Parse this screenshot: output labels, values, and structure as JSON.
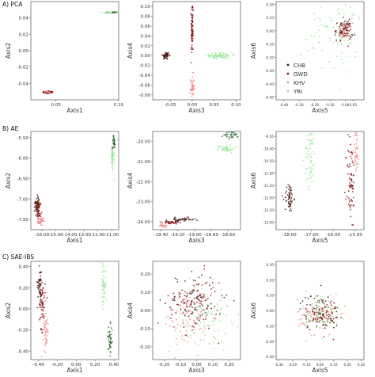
{
  "colors": {
    "CHB": "#4a1a14",
    "GWD": "#8b1a1a",
    "KHV": "#f28f8f",
    "YRI": "#9be59b",
    "dark_green": "#2e5e2e"
  },
  "legend": [
    "CHB",
    "GWD",
    "KHV",
    "YRI"
  ],
  "row_labels": [
    "A) PCA",
    "B) AE",
    "C) SAE-IBS"
  ],
  "chart_data": [
    {
      "id": "pca-12",
      "type": "scatter",
      "row": 0,
      "col": 0,
      "xlabel": "Axis1",
      "ylabel": "Axis2",
      "xlim": [
        0.03,
        0.1
      ],
      "ylim": [
        -0.06,
        0.06
      ],
      "xticks": [
        {
          "v": 0.05,
          "label": "0.05"
        },
        {
          "v": 0.1,
          "label": "0.10"
        }
      ],
      "yticks": [
        {
          "v": 0.04,
          "label": "0.04"
        },
        {
          "v": 0.02,
          "label": "0.02"
        },
        {
          "v": 0.0,
          "label": "0.00"
        },
        {
          "v": -0.02,
          "label": "-0.02"
        },
        {
          "v": -0.04,
          "label": "-0.04"
        }
      ],
      "series": [
        {
          "name": "CHB",
          "values": [
            [
              0.04,
              -0.051
            ],
            [
              0.046,
              -0.05
            ]
          ]
        },
        {
          "name": "GWD",
          "values": [
            [
              0.043,
              -0.052
            ],
            [
              0.047,
              -0.051
            ]
          ]
        },
        {
          "name": "KHV",
          "values": [
            [
              0.041,
              -0.05
            ]
          ]
        },
        {
          "name": "YRI",
          "values": [
            [
              0.09,
              0.046
            ],
            [
              0.098,
              0.047
            ]
          ]
        }
      ]
    },
    {
      "id": "pca-34",
      "type": "scatter",
      "row": 0,
      "col": 1,
      "xlabel": "Axis3",
      "ylabel": "Axis4",
      "xlim": [
        -0.09,
        0.11
      ],
      "ylim": [
        -0.09,
        0.11
      ],
      "xticks": [
        {
          "v": -0.05,
          "label": "-0.05"
        },
        {
          "v": 0.0,
          "label": "0.00"
        },
        {
          "v": 0.05,
          "label": "0.05"
        },
        {
          "v": 0.1,
          "label": "0.10"
        }
      ],
      "yticks": [
        {
          "v": 0.1,
          "label": "0.10"
        },
        {
          "v": 0.08,
          "label": "0.08"
        },
        {
          "v": 0.06,
          "label": "0.06"
        },
        {
          "v": 0.04,
          "label": "0.04"
        },
        {
          "v": 0.02,
          "label": "0.02"
        },
        {
          "v": 0.0,
          "label": "0.00"
        },
        {
          "v": -0.02,
          "label": "-0.02"
        },
        {
          "v": -0.04,
          "label": "-0.04"
        },
        {
          "v": -0.06,
          "label": "-0.06"
        },
        {
          "v": -0.08,
          "label": "-0.08"
        }
      ],
      "series": [
        {
          "name": "CHB",
          "values": [
            [
              -0.06,
              0.0
            ],
            [
              -0.055,
              0.002
            ]
          ]
        },
        {
          "name": "GWD",
          "values": [
            [
              0.0,
              0.07
            ],
            [
              0.0,
              0.03
            ]
          ]
        },
        {
          "name": "KHV",
          "values": [
            [
              0.0,
              -0.07
            ]
          ]
        },
        {
          "name": "YRI",
          "values": [
            [
              0.06,
              -0.001
            ]
          ]
        }
      ]
    },
    {
      "id": "pca-56",
      "type": "scatter",
      "row": 0,
      "col": 2,
      "xlabel": "Axis5",
      "ylabel": "Axis6",
      "xlim": [
        -0.45,
        0.12
      ],
      "ylim": [
        -0.52,
        0.22
      ],
      "xticks": [
        {
          "v": -0.4,
          "label": "-0.40"
        },
        {
          "v": -0.3,
          "label": "-0.30"
        },
        {
          "v": -0.2,
          "label": "-0.20"
        },
        {
          "v": -0.1,
          "label": "-0.10"
        },
        {
          "v": 0.0,
          "label": "0.00"
        },
        {
          "v": 0.05,
          "label": "0.05"
        }
      ],
      "yticks": [
        {
          "v": 0.2,
          "label": "0.20"
        },
        {
          "v": 0.1,
          "label": "0.10"
        },
        {
          "v": 0.0,
          "label": "0.00"
        },
        {
          "v": -0.1,
          "label": "-0.10"
        },
        {
          "v": -0.2,
          "label": "-0.20"
        },
        {
          "v": -0.3,
          "label": "-0.30"
        },
        {
          "v": -0.4,
          "label": "-0.40"
        },
        {
          "v": -0.5,
          "label": "-0.50"
        }
      ],
      "series": [
        {
          "name": "CHB",
          "values": [
            [
              0.0,
              0.02
            ]
          ]
        },
        {
          "name": "GWD",
          "values": [
            [
              -0.01,
              0.01
            ]
          ]
        },
        {
          "name": "KHV",
          "values": [
            [
              0.0,
              0.01
            ]
          ]
        },
        {
          "name": "YRI",
          "values": [
            [
              -0.03,
              -0.05
            ]
          ]
        }
      ]
    },
    {
      "id": "ae-12",
      "type": "scatter",
      "row": 1,
      "col": 0,
      "xlabel": "Axis1",
      "ylabel": "Axis2",
      "xlim": [
        -16.8,
        -10.5
      ],
      "ylim": [
        -7.75,
        -5.35
      ],
      "xticks": [
        {
          "v": -16.0,
          "label": "-16.00"
        },
        {
          "v": -15.0,
          "label": "-15.00"
        },
        {
          "v": -14.0,
          "label": "-14.00"
        },
        {
          "v": -13.0,
          "label": "-13.00"
        },
        {
          "v": -12.0,
          "label": "-12.00"
        },
        {
          "v": -11.0,
          "label": "-11.00"
        }
      ],
      "yticks": [
        {
          "v": -5.5,
          "label": "-5.50"
        },
        {
          "v": -6.0,
          "label": "-6.00"
        },
        {
          "v": -6.5,
          "label": "-6.50"
        },
        {
          "v": -7.0,
          "label": "-7.00"
        },
        {
          "v": -7.5,
          "label": "-7.50"
        }
      ],
      "series": [
        {
          "name": "CHB",
          "values": [
            [
              -16.5,
              -7.1
            ],
            [
              -16.2,
              -7.4
            ]
          ]
        },
        {
          "name": "GWD",
          "values": [
            [
              -16.3,
              -7.2
            ]
          ]
        },
        {
          "name": "KHV",
          "values": [
            [
              -16.1,
              -7.5
            ]
          ]
        },
        {
          "name": "YRI",
          "values": [
            [
              -10.9,
              -5.6
            ],
            [
              -11.0,
              -6.1
            ]
          ]
        }
      ]
    },
    {
      "id": "ae-34",
      "type": "scatter",
      "row": 1,
      "col": 1,
      "xlabel": "Axis3",
      "ylabel": "Axis4",
      "xlim": [
        -19.5,
        -18.45
      ],
      "ylim": [
        -24.4,
        -19.5
      ],
      "xticks": [
        {
          "v": -19.4,
          "label": "-19.40"
        },
        {
          "v": -19.2,
          "label": "-19.20"
        },
        {
          "v": -19.0,
          "label": "-19.00"
        },
        {
          "v": -18.8,
          "label": "-18.80"
        },
        {
          "v": -18.6,
          "label": "-18.60"
        }
      ],
      "yticks": [
        {
          "v": -20.0,
          "label": "-20.00"
        },
        {
          "v": -21.0,
          "label": "-21.00"
        },
        {
          "v": -22.0,
          "label": "-22.00"
        },
        {
          "v": -23.0,
          "label": "-23.00"
        },
        {
          "v": -24.0,
          "label": "-24.00"
        }
      ],
      "series": [
        {
          "name": "CHB",
          "values": [
            [
              -19.2,
              -23.95
            ]
          ]
        },
        {
          "name": "GWD",
          "values": [
            [
              -19.3,
              -24.05
            ]
          ]
        },
        {
          "name": "KHV",
          "values": [
            [
              -19.4,
              -24.15
            ]
          ]
        },
        {
          "name": "YRI",
          "values": [
            [
              -18.55,
              -19.7
            ],
            [
              -18.6,
              -20.4
            ]
          ]
        }
      ]
    },
    {
      "id": "ae-56",
      "type": "scatter",
      "row": 1,
      "col": 2,
      "xlabel": "Axis5",
      "ylabel": "Axis6",
      "xlim": [
        -18.6,
        -14.6
      ],
      "ylim": [
        -13.3,
        -9.3
      ],
      "xticks": [
        {
          "v": -18.0,
          "label": "-18.00"
        },
        {
          "v": -17.0,
          "label": "-17.00"
        },
        {
          "v": -16.0,
          "label": "-16.00"
        },
        {
          "v": -15.0,
          "label": "-15.00"
        }
      ],
      "yticks": [
        {
          "v": -9.5,
          "label": "-9.50"
        },
        {
          "v": -10.0,
          "label": "-10.00"
        },
        {
          "v": -10.5,
          "label": "-10.50"
        },
        {
          "v": -11.0,
          "label": "-11.00"
        },
        {
          "v": -11.5,
          "label": "-11.50"
        },
        {
          "v": -12.0,
          "label": "-12.00"
        },
        {
          "v": -12.5,
          "label": "-12.50"
        },
        {
          "v": -13.0,
          "label": "-13.00"
        }
      ],
      "series": [
        {
          "name": "CHB",
          "values": [
            [
              -18.0,
              -12.0
            ]
          ]
        },
        {
          "name": "GWD",
          "values": [
            [
              -15.2,
              -11.5
            ]
          ]
        },
        {
          "name": "KHV",
          "values": [
            [
              -14.9,
              -10.0
            ]
          ]
        },
        {
          "name": "YRI",
          "values": [
            [
              -17.0,
              -10.5
            ]
          ]
        }
      ]
    },
    {
      "id": "sae-12",
      "type": "scatter",
      "row": 2,
      "col": 0,
      "xlabel": "Axis1",
      "ylabel": "Axis2",
      "xlim": [
        -0.48,
        0.45
      ],
      "ylim": [
        -0.48,
        0.45
      ],
      "xticks": [
        {
          "v": -0.4,
          "label": "-0.40"
        },
        {
          "v": -0.2,
          "label": "-0.20"
        },
        {
          "v": 0.0,
          "label": "0.00"
        },
        {
          "v": 0.2,
          "label": "0.20"
        },
        {
          "v": 0.4,
          "label": "0.40"
        }
      ],
      "yticks": [
        {
          "v": 0.4,
          "label": "0.40"
        },
        {
          "v": 0.2,
          "label": "0.20"
        },
        {
          "v": 0.0,
          "label": "0.00"
        },
        {
          "v": -0.2,
          "label": "-0.20"
        },
        {
          "v": -0.4,
          "label": "-0.40"
        }
      ],
      "series": [
        {
          "name": "CHB",
          "values": [
            [
              -0.38,
              0.15
            ]
          ]
        },
        {
          "name": "GWD",
          "values": [
            [
              -0.36,
              0.05
            ]
          ]
        },
        {
          "name": "KHV",
          "values": [
            [
              -0.33,
              -0.15
            ]
          ]
        },
        {
          "name": "YRI",
          "values": [
            [
              0.3,
              0.2
            ],
            [
              0.36,
              -0.3
            ]
          ]
        }
      ]
    },
    {
      "id": "sae-34",
      "type": "scatter",
      "row": 2,
      "col": 1,
      "xlabel": "Axis3",
      "ylabel": "Axis4",
      "xlim": [
        -0.27,
        0.27
      ],
      "ylim": [
        -0.27,
        0.27
      ],
      "xticks": [
        {
          "v": -0.2,
          "label": "-0.20"
        },
        {
          "v": -0.1,
          "label": "-0.10"
        },
        {
          "v": 0.0,
          "label": "0.00"
        },
        {
          "v": 0.1,
          "label": "0.10"
        },
        {
          "v": 0.2,
          "label": "0.20"
        }
      ],
      "yticks": [
        {
          "v": 0.2,
          "label": "0.20"
        },
        {
          "v": 0.1,
          "label": "0.10"
        },
        {
          "v": 0.0,
          "label": "0.00"
        },
        {
          "v": -0.1,
          "label": "-0.10"
        },
        {
          "v": -0.2,
          "label": "-0.20"
        }
      ],
      "series": [
        {
          "name": "CHB",
          "values": [
            [
              -0.03,
              0.05
            ]
          ]
        },
        {
          "name": "GWD",
          "values": [
            [
              0.0,
              0.07
            ]
          ]
        },
        {
          "name": "KHV",
          "values": [
            [
              -0.04,
              -0.05
            ]
          ]
        },
        {
          "name": "YRI",
          "values": [
            [
              0.05,
              -0.01
            ]
          ]
        }
      ]
    },
    {
      "id": "sae-56",
      "type": "scatter",
      "row": 2,
      "col": 2,
      "xlabel": "Axis5",
      "ylabel": "Axis6",
      "xlim": [
        -0.32,
        0.32
      ],
      "ylim": [
        -0.32,
        0.32
      ],
      "xticks": [
        {
          "v": -0.3,
          "label": "-0.30"
        },
        {
          "v": -0.2,
          "label": "-0.20"
        },
        {
          "v": -0.1,
          "label": "-0.10"
        },
        {
          "v": 0.0,
          "label": "0.00"
        },
        {
          "v": 0.1,
          "label": "0.10"
        },
        {
          "v": 0.2,
          "label": "0.20"
        },
        {
          "v": 0.3,
          "label": "0.30"
        }
      ],
      "yticks": [
        {
          "v": 0.3,
          "label": "0.30"
        },
        {
          "v": 0.2,
          "label": "0.20"
        },
        {
          "v": 0.1,
          "label": "0.10"
        },
        {
          "v": 0.0,
          "label": "0.00"
        },
        {
          "v": -0.1,
          "label": "-0.10"
        },
        {
          "v": -0.2,
          "label": "-0.20"
        },
        {
          "v": -0.3,
          "label": "-0.30"
        }
      ],
      "series": [
        {
          "name": "CHB",
          "values": [
            [
              0.0,
              -0.02
            ]
          ]
        },
        {
          "name": "GWD",
          "values": [
            [
              0.02,
              -0.03
            ]
          ]
        },
        {
          "name": "KHV",
          "values": [
            [
              -0.02,
              -0.05
            ]
          ]
        },
        {
          "name": "YRI",
          "values": [
            [
              0.01,
              -0.02
            ]
          ]
        }
      ]
    }
  ]
}
